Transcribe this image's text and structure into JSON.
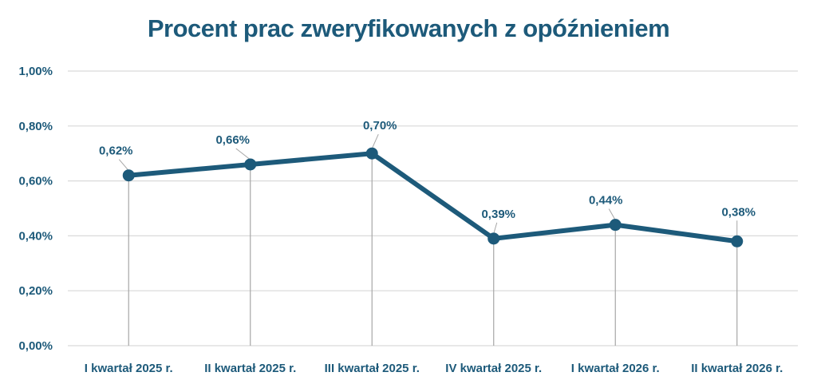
{
  "colors": {
    "line": "#1d5a7a",
    "title": "#1d5a7a",
    "grid": "#d9d9d9",
    "drop": "#a6a6a6",
    "text": "#1d5a7a"
  },
  "chart_data": {
    "type": "line",
    "title": "Procent prac zweryfikowanych z opóźnieniem",
    "xlabel": "",
    "ylabel": "",
    "categories": [
      "I kwartał 2025 r.",
      "II kwartał 2025 r.",
      "III kwartał 2025 r.",
      "IV kwartał 2025 r.",
      "I kwartał 2026 r.",
      "II kwartał 2026 r."
    ],
    "series": [
      {
        "values": [
          0.62,
          0.66,
          0.7,
          0.39,
          0.44,
          0.38
        ]
      }
    ],
    "data_labels": [
      "0,62%",
      "0,66%",
      "0,70%",
      "0,39%",
      "0,44%",
      "0,38%"
    ],
    "ylim": [
      0,
      1.0
    ],
    "yticks": [
      0,
      0.2,
      0.4,
      0.6,
      0.8,
      1.0
    ],
    "ytick_labels": [
      "0,00%",
      "0,20%",
      "0,40%",
      "0,60%",
      "0,80%",
      "1,00%"
    ],
    "grid": true,
    "drop_lines": true,
    "legend": "none"
  }
}
